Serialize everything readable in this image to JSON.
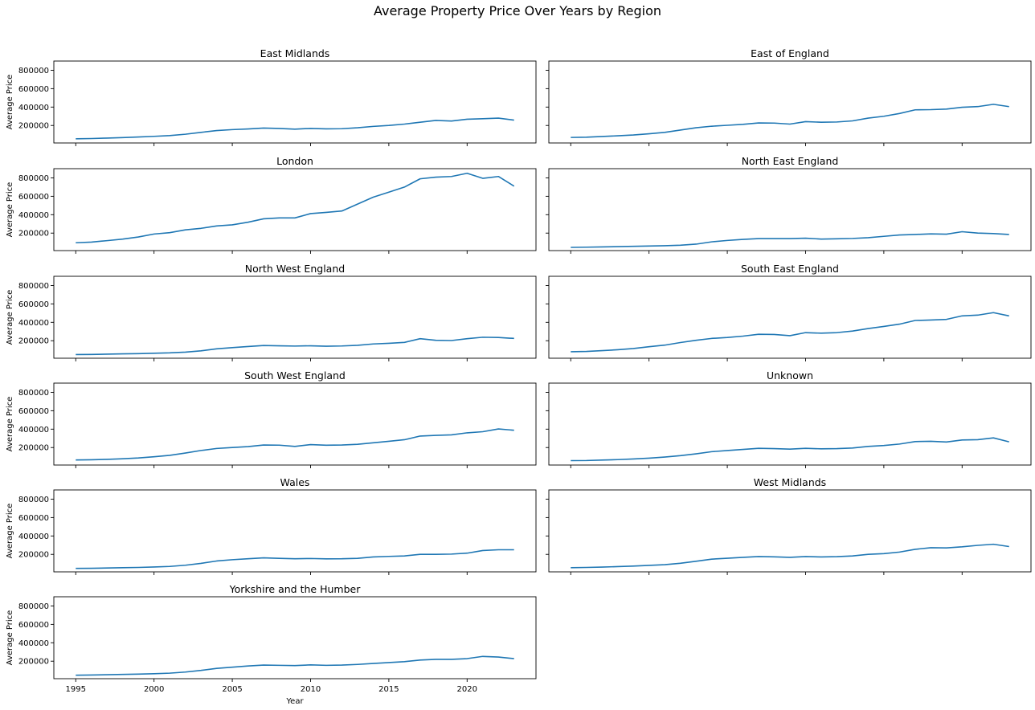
{
  "figure": {
    "title": "Average Property Price Over Years by Region",
    "xlabel": "Year",
    "ylabel": "Average Price",
    "line_color": "#1f77b4"
  },
  "chart_data": {
    "type": "line",
    "title": "Average Property Price Over Years by Region",
    "xlabel": "Year",
    "ylabel": "Average Price",
    "xlim": [
      1993.6,
      2024.4
    ],
    "ylim": [
      10000,
      900000
    ],
    "x_ticks": [
      1995,
      2000,
      2005,
      2010,
      2015,
      2020
    ],
    "y_ticks": [
      200000,
      400000,
      600000,
      800000
    ],
    "grid": false,
    "x": [
      1995,
      1996,
      1997,
      1998,
      1999,
      2000,
      2001,
      2002,
      2003,
      2004,
      2005,
      2006,
      2007,
      2008,
      2009,
      2010,
      2011,
      2012,
      2013,
      2014,
      2015,
      2016,
      2017,
      2018,
      2019,
      2020,
      2021,
      2022,
      2023
    ],
    "panels": [
      {
        "title": "East Midlands",
        "values": [
          55000,
          58000,
          63000,
          68000,
          75000,
          82000,
          90000,
          105000,
          125000,
          145000,
          155000,
          162000,
          172000,
          168000,
          160000,
          168000,
          163000,
          165000,
          175000,
          190000,
          200000,
          215000,
          235000,
          255000,
          248000,
          268000,
          273000,
          280000,
          258000
        ]
      },
      {
        "title": "East of England",
        "values": [
          70000,
          73000,
          80000,
          88000,
          97000,
          110000,
          125000,
          150000,
          175000,
          192000,
          202000,
          212000,
          228000,
          226000,
          215000,
          242000,
          235000,
          238000,
          250000,
          280000,
          300000,
          330000,
          370000,
          372000,
          378000,
          398000,
          405000,
          430000,
          405000
        ]
      },
      {
        "title": "London",
        "values": [
          95000,
          102000,
          118000,
          135000,
          158000,
          190000,
          205000,
          235000,
          252000,
          278000,
          290000,
          318000,
          355000,
          365000,
          365000,
          412000,
          425000,
          440000,
          515000,
          590000,
          645000,
          700000,
          790000,
          808000,
          815000,
          850000,
          795000,
          815000,
          710000
        ]
      },
      {
        "title": "North East England",
        "values": [
          45000,
          47000,
          50000,
          53000,
          56000,
          60000,
          63000,
          68000,
          80000,
          105000,
          120000,
          132000,
          140000,
          140000,
          140000,
          145000,
          135000,
          138000,
          142000,
          150000,
          165000,
          180000,
          185000,
          192000,
          188000,
          215000,
          200000,
          195000,
          185000
        ]
      },
      {
        "title": "North West England",
        "values": [
          50000,
          51000,
          54000,
          57000,
          60000,
          64000,
          68000,
          76000,
          90000,
          112000,
          125000,
          137000,
          148000,
          145000,
          142000,
          145000,
          140000,
          143000,
          150000,
          165000,
          172000,
          182000,
          222000,
          205000,
          202000,
          222000,
          238000,
          235000,
          225000
        ]
      },
      {
        "title": "South East England",
        "values": [
          80000,
          84000,
          92000,
          102000,
          115000,
          135000,
          152000,
          180000,
          205000,
          225000,
          235000,
          250000,
          270000,
          268000,
          255000,
          288000,
          282000,
          288000,
          305000,
          332000,
          355000,
          380000,
          420000,
          425000,
          432000,
          470000,
          478000,
          505000,
          470000
        ]
      },
      {
        "title": "South West England",
        "values": [
          65000,
          67000,
          72000,
          78000,
          87000,
          100000,
          115000,
          140000,
          168000,
          190000,
          200000,
          210000,
          228000,
          226000,
          212000,
          232000,
          225000,
          228000,
          235000,
          252000,
          268000,
          285000,
          325000,
          332000,
          338000,
          360000,
          372000,
          402000,
          388000
        ]
      },
      {
        "title": "Unknown",
        "values": [
          58000,
          59000,
          64000,
          69000,
          76000,
          85000,
          97000,
          112000,
          132000,
          155000,
          168000,
          180000,
          192000,
          188000,
          183000,
          192000,
          186000,
          188000,
          195000,
          212000,
          222000,
          238000,
          265000,
          268000,
          260000,
          282000,
          285000,
          305000,
          262000
        ]
      },
      {
        "title": "Wales",
        "values": [
          48000,
          49000,
          52000,
          55000,
          58000,
          63000,
          69000,
          82000,
          102000,
          128000,
          142000,
          152000,
          162000,
          157000,
          152000,
          155000,
          151000,
          152000,
          157000,
          172000,
          178000,
          183000,
          200000,
          200000,
          203000,
          213000,
          242000,
          250000,
          250000
        ]
      },
      {
        "title": "West Midlands",
        "values": [
          55000,
          58000,
          62000,
          67000,
          73000,
          80000,
          88000,
          103000,
          125000,
          148000,
          158000,
          168000,
          176000,
          173000,
          168000,
          176000,
          172000,
          175000,
          183000,
          200000,
          208000,
          225000,
          255000,
          272000,
          270000,
          282000,
          298000,
          310000,
          285000
        ]
      },
      {
        "title": "Yorkshire and the Humber",
        "values": [
          48000,
          50000,
          53000,
          56000,
          60000,
          64000,
          70000,
          82000,
          100000,
          122000,
          135000,
          148000,
          158000,
          155000,
          152000,
          160000,
          155000,
          158000,
          165000,
          175000,
          185000,
          195000,
          212000,
          220000,
          220000,
          228000,
          252000,
          245000,
          228000
        ]
      }
    ]
  }
}
